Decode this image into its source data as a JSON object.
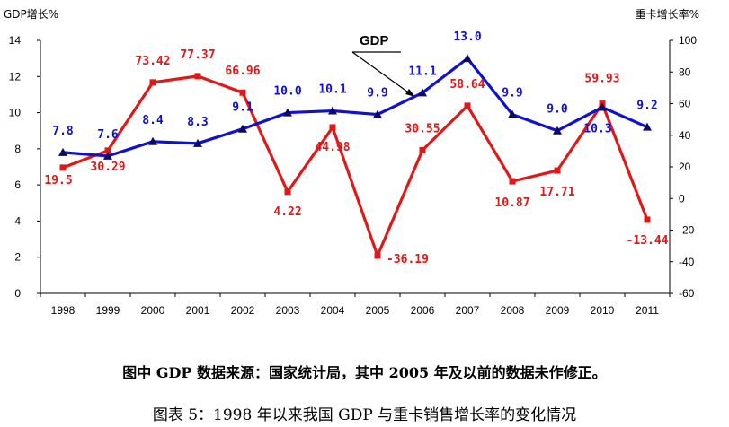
{
  "chart_data": {
    "type": "line",
    "categories": [
      "1998",
      "1999",
      "2000",
      "2001",
      "2002",
      "2003",
      "2004",
      "2005",
      "2006",
      "2007",
      "2008",
      "2009",
      "2010",
      "2011"
    ],
    "series": [
      {
        "name": "GDP",
        "axis": "left",
        "color": "#1010d0",
        "marker": "triangle",
        "values": [
          7.8,
          7.6,
          8.4,
          8.3,
          9.1,
          10.0,
          10.1,
          9.9,
          11.1,
          13.0,
          9.9,
          9.0,
          10.3,
          9.2
        ],
        "labels": [
          "7.8",
          "7.6",
          "8.4",
          "8.3",
          "9.1",
          "10.0",
          "10.1",
          "9.9",
          "11.1",
          "13.0",
          "9.9",
          "9.0",
          "10.3",
          "9.2"
        ]
      },
      {
        "axis": "right",
        "color": "#e01818",
        "marker": "square",
        "values": [
          19.5,
          30.29,
          73.42,
          77.37,
          66.96,
          4.22,
          44.98,
          -36.19,
          30.55,
          58.64,
          10.87,
          17.71,
          59.93,
          -13.44
        ],
        "labels": [
          "19.5",
          "30.29",
          "73.42",
          "77.37",
          "66.96",
          "4.22",
          "44.98",
          "-36.19",
          "30.55",
          "58.64",
          "10.87",
          "17.71",
          "59.93",
          "-13.44"
        ]
      }
    ],
    "ylabel_left": "GDP增长%",
    "ylabel_right": "重卡增长率%",
    "ylim_left": [
      0,
      14
    ],
    "yticks_left": [
      "0",
      "2",
      "4",
      "6",
      "8",
      "10",
      "12",
      "14"
    ],
    "ylim_right": [
      -60,
      100
    ],
    "yticks_right": [
      "-60",
      "-40",
      "-20",
      "0",
      "20",
      "40",
      "60",
      "80",
      "100"
    ],
    "annotation": "GDP",
    "grid": false,
    "legend": "none"
  },
  "notes": {
    "source": "图中 GDP 数据来源：国家统计局，其中 2005 年及以前的数据未作修正。",
    "caption": "图表 5：1998 年以来我国 GDP 与重卡销售增长率的变化情况"
  }
}
